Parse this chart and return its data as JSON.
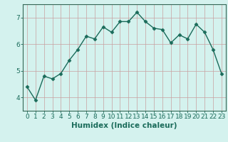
{
  "x": [
    0,
    1,
    2,
    3,
    4,
    5,
    6,
    7,
    8,
    9,
    10,
    11,
    12,
    13,
    14,
    15,
    16,
    17,
    18,
    19,
    20,
    21,
    22,
    23
  ],
  "y": [
    4.4,
    3.9,
    4.8,
    4.7,
    4.9,
    5.4,
    5.8,
    6.3,
    6.2,
    6.65,
    6.45,
    6.85,
    6.85,
    7.2,
    6.85,
    6.6,
    6.55,
    6.05,
    6.35,
    6.2,
    6.75,
    6.45,
    5.8,
    4.9
  ],
  "line_color": "#1a6b5a",
  "marker": "D",
  "marker_size": 2.5,
  "bg_color": "#d4f2ee",
  "grid_color_major": "#c8a0a0",
  "grid_color_minor": "#e0c8c8",
  "xlabel": "Humidex (Indice chaleur)",
  "xlim": [
    -0.5,
    23.5
  ],
  "ylim": [
    3.5,
    7.5
  ],
  "yticks": [
    4,
    5,
    6,
    7
  ],
  "xticks": [
    0,
    1,
    2,
    3,
    4,
    5,
    6,
    7,
    8,
    9,
    10,
    11,
    12,
    13,
    14,
    15,
    16,
    17,
    18,
    19,
    20,
    21,
    22,
    23
  ],
  "xlabel_fontsize": 7.5,
  "tick_fontsize": 6.5,
  "line_width": 1.0,
  "spine_color": "#336655"
}
